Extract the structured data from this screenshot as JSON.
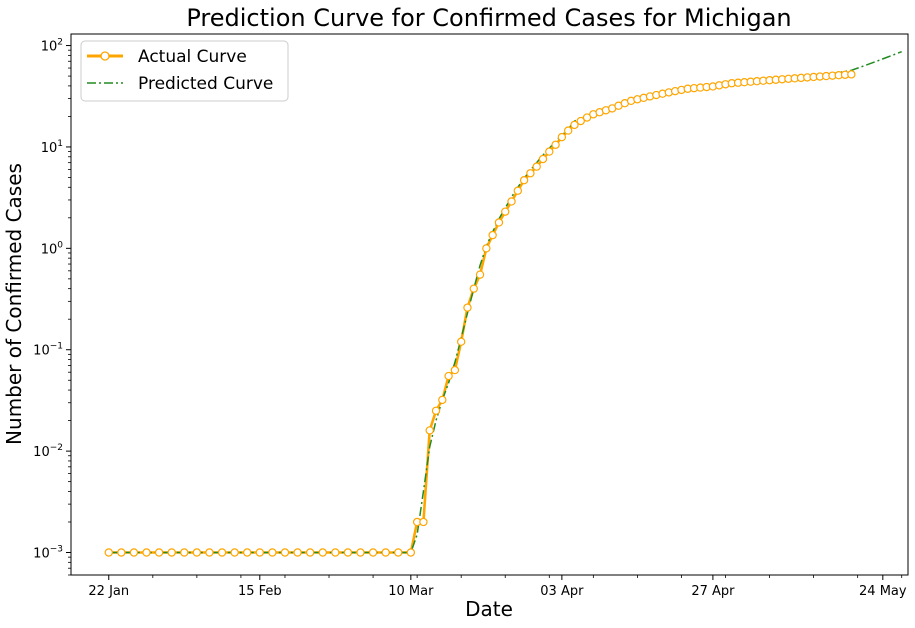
{
  "chart_data": {
    "type": "line",
    "title": "Prediction Curve for Confirmed Cases for Michigan",
    "xlabel": "Date",
    "ylabel": "Number of Confirmed Cases",
    "y_scale": "log",
    "ylim": [
      0.0006,
      130
    ],
    "xlim": [
      "2020-01-16",
      "2020-05-28"
    ],
    "x_ticks": [
      {
        "date": "2020-01-22",
        "label": "22 Jan"
      },
      {
        "date": "2020-02-15",
        "label": "15 Feb"
      },
      {
        "date": "2020-03-10",
        "label": "10 Mar"
      },
      {
        "date": "2020-04-03",
        "label": "03 Apr"
      },
      {
        "date": "2020-04-27",
        "label": "27 Apr"
      },
      {
        "date": "2020-05-24",
        "label": "24 May"
      }
    ],
    "y_ticks": [
      {
        "value": 0.001,
        "base": "10",
        "exp": "−3"
      },
      {
        "value": 0.01,
        "base": "10",
        "exp": "−2"
      },
      {
        "value": 0.1,
        "base": "10",
        "exp": "−1"
      },
      {
        "value": 1,
        "base": "10",
        "exp": "0"
      },
      {
        "value": 10,
        "base": "10",
        "exp": "1"
      },
      {
        "value": 100,
        "base": "10",
        "exp": "2"
      }
    ],
    "legend_position": "top-left",
    "grid": false,
    "series": [
      {
        "name": "Actual Curve",
        "color": "#ffa500",
        "marker": "circle",
        "points": [
          [
            "2020-01-22",
            0.001
          ],
          [
            "2020-01-24",
            0.001
          ],
          [
            "2020-01-26",
            0.001
          ],
          [
            "2020-01-28",
            0.001
          ],
          [
            "2020-01-30",
            0.001
          ],
          [
            "2020-02-01",
            0.001
          ],
          [
            "2020-02-03",
            0.001
          ],
          [
            "2020-02-05",
            0.001
          ],
          [
            "2020-02-07",
            0.001
          ],
          [
            "2020-02-09",
            0.001
          ],
          [
            "2020-02-11",
            0.001
          ],
          [
            "2020-02-13",
            0.001
          ],
          [
            "2020-02-15",
            0.001
          ],
          [
            "2020-02-17",
            0.001
          ],
          [
            "2020-02-19",
            0.001
          ],
          [
            "2020-02-21",
            0.001
          ],
          [
            "2020-02-23",
            0.001
          ],
          [
            "2020-02-25",
            0.001
          ],
          [
            "2020-02-27",
            0.001
          ],
          [
            "2020-02-29",
            0.001
          ],
          [
            "2020-03-02",
            0.001
          ],
          [
            "2020-03-04",
            0.001
          ],
          [
            "2020-03-06",
            0.001
          ],
          [
            "2020-03-08",
            0.001
          ],
          [
            "2020-03-10",
            0.001
          ],
          [
            "2020-03-11",
            0.002
          ],
          [
            "2020-03-12",
            0.002
          ],
          [
            "2020-03-13",
            0.016
          ],
          [
            "2020-03-14",
            0.025
          ],
          [
            "2020-03-15",
            0.032
          ],
          [
            "2020-03-16",
            0.055
          ],
          [
            "2020-03-17",
            0.063
          ],
          [
            "2020-03-18",
            0.12
          ],
          [
            "2020-03-19",
            0.26
          ],
          [
            "2020-03-20",
            0.4
          ],
          [
            "2020-03-21",
            0.55
          ],
          [
            "2020-03-22",
            1.0
          ],
          [
            "2020-03-23",
            1.35
          ],
          [
            "2020-03-24",
            1.8
          ],
          [
            "2020-03-25",
            2.3
          ],
          [
            "2020-03-26",
            2.9
          ],
          [
            "2020-03-27",
            3.7
          ],
          [
            "2020-03-28",
            4.7
          ],
          [
            "2020-03-29",
            5.5
          ],
          [
            "2020-03-30",
            6.4
          ],
          [
            "2020-03-31",
            7.6
          ],
          [
            "2020-04-01",
            9.0
          ],
          [
            "2020-04-02",
            10.5
          ],
          [
            "2020-04-03",
            12.5
          ],
          [
            "2020-04-04",
            14.5
          ],
          [
            "2020-04-05",
            16.5
          ],
          [
            "2020-04-06",
            18
          ],
          [
            "2020-04-07",
            19.5
          ],
          [
            "2020-04-08",
            21
          ],
          [
            "2020-04-09",
            22
          ],
          [
            "2020-04-10",
            23
          ],
          [
            "2020-04-11",
            24
          ],
          [
            "2020-04-12",
            25.5
          ],
          [
            "2020-04-13",
            27
          ],
          [
            "2020-04-14",
            28.5
          ],
          [
            "2020-04-15",
            29.5
          ],
          [
            "2020-04-16",
            30.5
          ],
          [
            "2020-04-17",
            31.5
          ],
          [
            "2020-04-18",
            32.5
          ],
          [
            "2020-04-19",
            33.5
          ],
          [
            "2020-04-20",
            34.5
          ],
          [
            "2020-04-21",
            35.5
          ],
          [
            "2020-04-22",
            36.5
          ],
          [
            "2020-04-23",
            37.5
          ],
          [
            "2020-04-24",
            38
          ],
          [
            "2020-04-25",
            38.5
          ],
          [
            "2020-04-26",
            39
          ],
          [
            "2020-04-27",
            39.5
          ],
          [
            "2020-04-28",
            40.5
          ],
          [
            "2020-04-29",
            41.5
          ],
          [
            "2020-04-30",
            42.5
          ],
          [
            "2020-05-01",
            43
          ],
          [
            "2020-05-02",
            43.5
          ],
          [
            "2020-05-03",
            44
          ],
          [
            "2020-05-04",
            44.5
          ],
          [
            "2020-05-05",
            45
          ],
          [
            "2020-05-06",
            45.5
          ],
          [
            "2020-05-07",
            46
          ],
          [
            "2020-05-08",
            46.5
          ],
          [
            "2020-05-09",
            47
          ],
          [
            "2020-05-10",
            47.5
          ],
          [
            "2020-05-11",
            48
          ],
          [
            "2020-05-12",
            48.5
          ],
          [
            "2020-05-13",
            49
          ],
          [
            "2020-05-14",
            49.5
          ],
          [
            "2020-05-15",
            50
          ],
          [
            "2020-05-16",
            50.5
          ],
          [
            "2020-05-17",
            51
          ],
          [
            "2020-05-18",
            51.5
          ],
          [
            "2020-05-19",
            52
          ]
        ]
      },
      {
        "name": "Predicted Curve",
        "color": "#228b22",
        "linestyle": "dash-dot",
        "points": [
          [
            "2020-01-22",
            0.001
          ],
          [
            "2020-03-10",
            0.001
          ],
          [
            "2020-03-11",
            0.0015
          ],
          [
            "2020-03-12",
            0.004
          ],
          [
            "2020-03-13",
            0.011
          ],
          [
            "2020-03-14",
            0.02
          ],
          [
            "2020-03-15",
            0.032
          ],
          [
            "2020-03-16",
            0.047
          ],
          [
            "2020-03-17",
            0.075
          ],
          [
            "2020-03-18",
            0.13
          ],
          [
            "2020-03-19",
            0.23
          ],
          [
            "2020-03-20",
            0.4
          ],
          [
            "2020-03-21",
            0.68
          ],
          [
            "2020-03-22",
            1.05
          ],
          [
            "2020-03-23",
            1.45
          ],
          [
            "2020-03-24",
            1.95
          ],
          [
            "2020-03-25",
            2.5
          ],
          [
            "2020-03-26",
            3.2
          ],
          [
            "2020-03-27",
            4.0
          ],
          [
            "2020-03-28",
            4.9
          ],
          [
            "2020-03-29",
            5.9
          ],
          [
            "2020-03-30",
            7.0
          ],
          [
            "2020-03-31",
            8.3
          ],
          [
            "2020-04-01",
            9.7
          ],
          [
            "2020-04-02",
            11.3
          ],
          [
            "2020-04-03",
            13.0
          ],
          [
            "2020-04-04",
            15.0
          ],
          [
            "2020-04-05",
            18.0
          ],
          [
            "2020-04-07",
            20.5
          ],
          [
            "2020-04-10",
            23.5
          ],
          [
            "2020-04-13",
            27
          ],
          [
            "2020-04-16",
            30.5
          ],
          [
            "2020-04-20",
            34
          ],
          [
            "2020-04-24",
            37.5
          ],
          [
            "2020-04-28",
            40.5
          ],
          [
            "2020-05-02",
            43
          ],
          [
            "2020-05-06",
            45.5
          ],
          [
            "2020-05-10",
            48
          ],
          [
            "2020-05-14",
            51
          ],
          [
            "2020-05-17",
            54
          ],
          [
            "2020-05-19",
            57
          ],
          [
            "2020-05-21",
            63
          ],
          [
            "2020-05-23",
            70
          ],
          [
            "2020-05-25",
            78
          ],
          [
            "2020-05-27",
            87
          ]
        ]
      }
    ]
  }
}
